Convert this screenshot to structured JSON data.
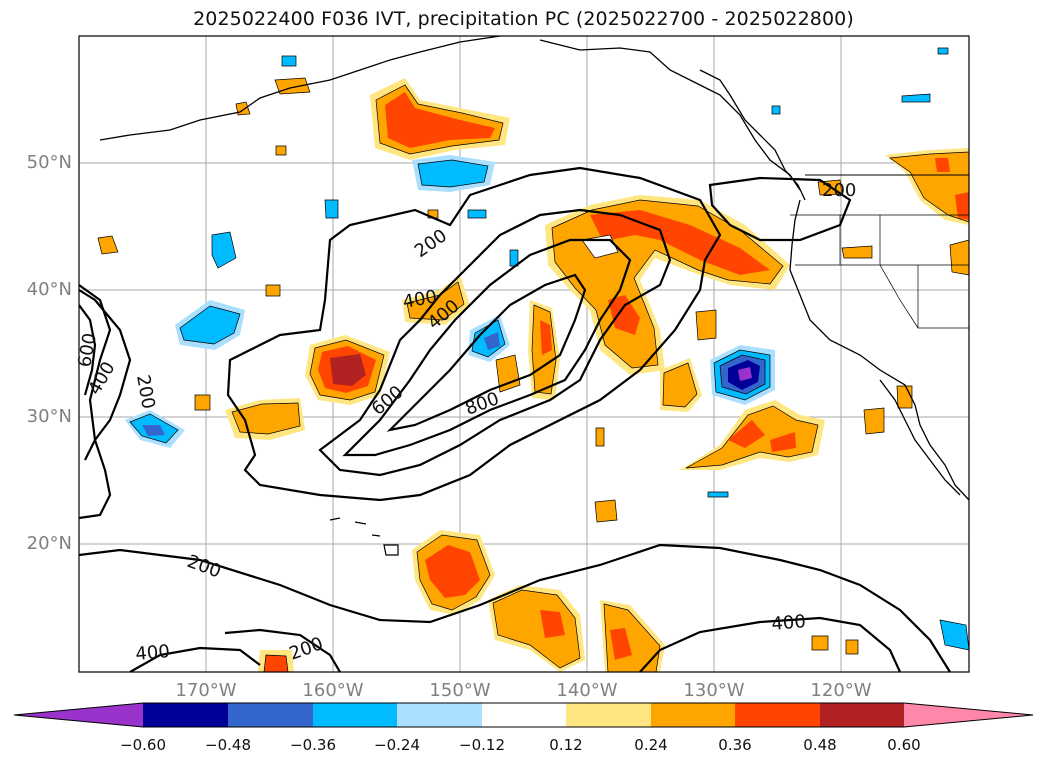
{
  "figure": {
    "title": "2025022400 F036 IVT, precipitation PC (2025022700 - 2025022800)"
  },
  "map": {
    "lon_range": [
      -180,
      -110
    ],
    "lat_range": [
      10,
      60
    ],
    "lat_labels": [
      "50°N",
      "40°N",
      "30°N",
      "20°N"
    ],
    "lat_values": [
      50,
      40,
      30,
      20
    ],
    "lon_labels": [
      "170°W",
      "160°W",
      "150°W",
      "140°W",
      "130°W",
      "120°W"
    ],
    "lon_values": [
      -170,
      -160,
      -150,
      -140,
      -130,
      -120
    ],
    "gridlines": true,
    "ivt_contour_labels": [
      "200",
      "400",
      "400",
      "600",
      "800",
      "600",
      "400",
      "200",
      "200",
      "400",
      "200",
      "400",
      "200",
      "600",
      "400"
    ]
  },
  "colorbar": {
    "tick_labels": [
      "−0.60",
      "−0.48",
      "−0.36",
      "−0.24",
      "−0.12",
      "0.12",
      "0.24",
      "0.36",
      "0.48",
      "0.60"
    ],
    "bin_edges": [
      -0.6,
      -0.48,
      -0.36,
      -0.24,
      -0.12,
      0.12,
      0.24,
      0.36,
      0.48,
      0.6
    ],
    "colors": [
      "#9933cc",
      "#000099",
      "#3366cc",
      "#00bbff",
      "#aadfff",
      "#ffffff",
      "#ffe680",
      "#ffa500",
      "#ff4500",
      "#b22222",
      "#ff88aa"
    ],
    "extend": "both"
  },
  "chart_data": {
    "type": "heatmap",
    "title": "2025022400 F036 IVT, precipitation PC (2025022700 - 2025022800)",
    "variable_filled": "precipitation PC",
    "variable_contoured": "IVT",
    "contour_levels": [
      200,
      400,
      600,
      800
    ]
  }
}
